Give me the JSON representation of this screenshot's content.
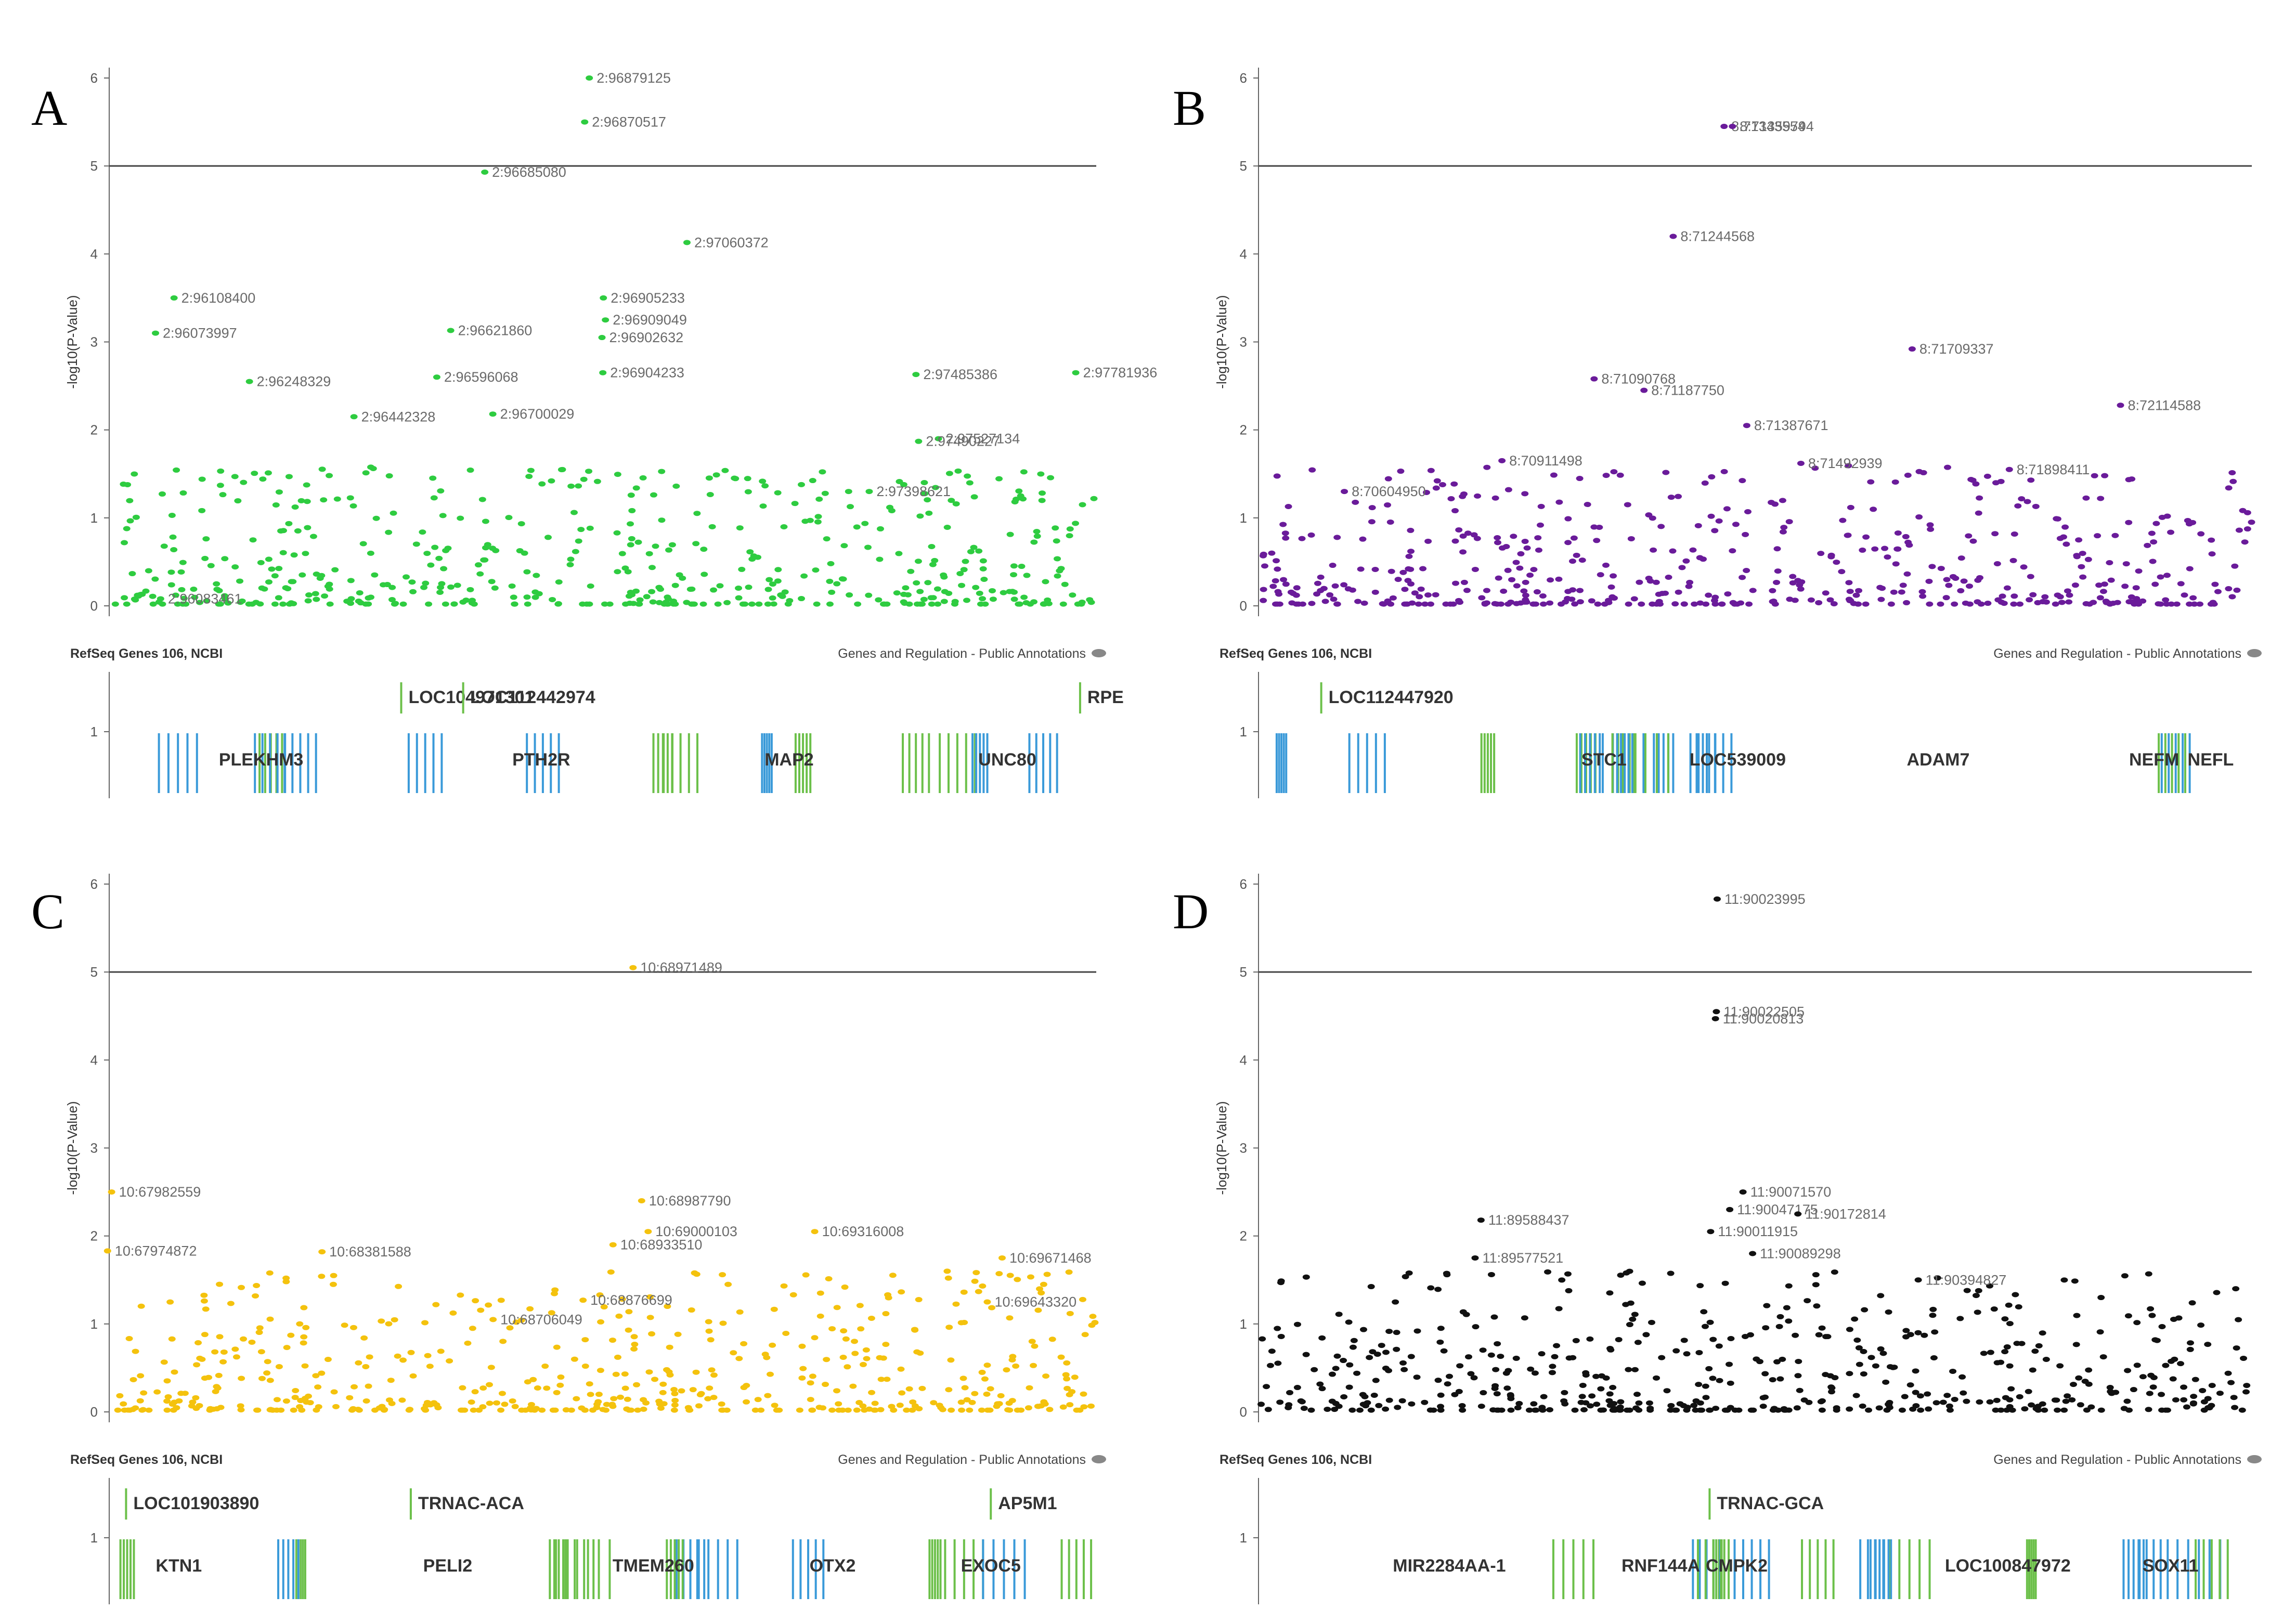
{
  "figure_title": "",
  "chart_data": [
    {
      "panel": "A",
      "type": "scatter",
      "color": "#2ecc40",
      "ylabel": "-log10(P-Value)",
      "ylim": [
        0,
        6
      ],
      "yticks": [
        0,
        1,
        2,
        3,
        4,
        5,
        6
      ],
      "xlim": [
        95990000,
        97820000
      ],
      "threshold": 5,
      "track_title": "RefSeq Genes 106, NCBI",
      "track_right": "Genes and Regulation - Public Annotations",
      "annotations": [
        {
          "label": "2:96879125",
          "x": 96879125,
          "y": 6.0
        },
        {
          "label": "2:96870517",
          "x": 96870517,
          "y": 5.5
        },
        {
          "label": "2:96685080",
          "x": 96685080,
          "y": 4.93
        },
        {
          "label": "2:97060372",
          "x": 97060372,
          "y": 4.13
        },
        {
          "label": "2:96905233",
          "x": 96905233,
          "y": 3.5
        },
        {
          "label": "2:96909049",
          "x": 96909049,
          "y": 3.25
        },
        {
          "label": "2:96902632",
          "x": 96902632,
          "y": 3.05
        },
        {
          "label": "2:96108400",
          "x": 96108400,
          "y": 3.5
        },
        {
          "label": "2:96073997",
          "x": 96073997,
          "y": 3.1
        },
        {
          "label": "2:96621860",
          "x": 96621860,
          "y": 3.13
        },
        {
          "label": "2:96248329",
          "x": 96248329,
          "y": 2.55
        },
        {
          "label": "2:96596068",
          "x": 96596068,
          "y": 2.6
        },
        {
          "label": "2:96904233",
          "x": 96904233,
          "y": 2.65
        },
        {
          "label": "2:96442328",
          "x": 96442328,
          "y": 2.15
        },
        {
          "label": "2:96700029",
          "x": 96700029,
          "y": 2.18
        },
        {
          "label": "2:97485386",
          "x": 97485386,
          "y": 2.63
        },
        {
          "label": "2:97781936",
          "x": 97781936,
          "y": 2.65
        },
        {
          "label": "2:97527134",
          "x": 97527134,
          "y": 1.9
        },
        {
          "label": "2:97490227",
          "x": 97490227,
          "y": 1.87
        },
        {
          "label": "2:97398621",
          "x": 97398621,
          "y": 1.3
        },
        {
          "label": "2:96083461",
          "x": 96083461,
          "y": 0.08
        }
      ],
      "genes_upper": [
        {
          "label": "LOC104971301",
          "x": 96530000
        },
        {
          "label": "LOC112442974",
          "x": 96645000
        },
        {
          "label": "RPE",
          "x": 97790000
        }
      ],
      "genes_lower": [
        {
          "label": "PLEKHM3",
          "x": 96270000
        },
        {
          "label": "PTH2R",
          "x": 96790000
        },
        {
          "label": "MAP2",
          "x": 97250000
        },
        {
          "label": "UNC80",
          "x": 97655000
        }
      ]
    },
    {
      "panel": "B",
      "type": "scatter",
      "color": "#6a1b9a",
      "ylabel": "-log10(P-Value)",
      "ylim": [
        0,
        6
      ],
      "yticks": [
        0,
        1,
        2,
        3,
        4,
        5,
        6
      ],
      "xlim": [
        70440000,
        72370000
      ],
      "threshold": 5,
      "track_title": "RefSeq Genes 106, NCBI",
      "track_right": "Genes and Regulation - Public Annotations",
      "annotations": [
        {
          "label": "8:71343554",
          "x": 71343554,
          "y": 5.45
        },
        {
          "label": "8:71359794",
          "x": 71359794,
          "y": 5.45
        },
        {
          "label": "8:71244568",
          "x": 71244568,
          "y": 4.2
        },
        {
          "label": "8:71709337",
          "x": 71709337,
          "y": 2.92
        },
        {
          "label": "8:71090768",
          "x": 71090768,
          "y": 2.58
        },
        {
          "label": "8:71187750",
          "x": 71187750,
          "y": 2.45
        },
        {
          "label": "8:71387671",
          "x": 71387671,
          "y": 2.05
        },
        {
          "label": "8:72114588",
          "x": 72114588,
          "y": 2.28
        },
        {
          "label": "8:70911498",
          "x": 70911498,
          "y": 1.65
        },
        {
          "label": "8:71492939",
          "x": 71492939,
          "y": 1.62
        },
        {
          "label": "8:71898411",
          "x": 71898411,
          "y": 1.55
        },
        {
          "label": "8:70604950",
          "x": 70604950,
          "y": 1.3
        }
      ],
      "genes_upper": [
        {
          "label": "LOC112447920",
          "x": 70560000
        }
      ],
      "genes_lower": [
        {
          "label": "STC1",
          "x": 71110000
        },
        {
          "label": "LOC539009",
          "x": 71370000
        },
        {
          "label": "ADAM7",
          "x": 71760000
        },
        {
          "label": "NEFM",
          "x": 72180000
        },
        {
          "label": "NEFL",
          "x": 72290000
        }
      ]
    },
    {
      "panel": "C",
      "type": "scatter",
      "color": "#f4c20d",
      "ylabel": "-log10(P-Value)",
      "ylim": [
        0,
        6
      ],
      "yticks": [
        0,
        1,
        2,
        3,
        4,
        5,
        6
      ],
      "xlim": [
        67980000,
        69850000
      ],
      "threshold": 5,
      "track_title": "RefSeq Genes 106, NCBI",
      "track_right": "Genes and Regulation - Public Annotations",
      "annotations": [
        {
          "label": "10:68971489",
          "x": 68971489,
          "y": 5.05
        },
        {
          "label": "10:67982559",
          "x": 67982559,
          "y": 2.5
        },
        {
          "label": "10:68987790",
          "x": 68987790,
          "y": 2.4
        },
        {
          "label": "10:69000103",
          "x": 69000103,
          "y": 2.05
        },
        {
          "label": "10:69316008",
          "x": 69316008,
          "y": 2.05
        },
        {
          "label": "10:68933510",
          "x": 68933510,
          "y": 1.9
        },
        {
          "label": "10:69671468",
          "x": 69671468,
          "y": 1.75
        },
        {
          "label": "10:67974872",
          "x": 67974872,
          "y": 1.83
        },
        {
          "label": "10:68381588",
          "x": 68381588,
          "y": 1.82
        },
        {
          "label": "10:68876699",
          "x": 68876699,
          "y": 1.27
        },
        {
          "label": "10:68706049",
          "x": 68706049,
          "y": 1.05
        },
        {
          "label": "10:69643320",
          "x": 69643320,
          "y": 1.25
        }
      ],
      "genes_upper": [
        {
          "label": "LOC101903890",
          "x": 68010000
        },
        {
          "label": "TRNAC-ACA",
          "x": 68550000
        },
        {
          "label": "AP5M1",
          "x": 69650000
        }
      ],
      "genes_lower": [
        {
          "label": "KTN1",
          "x": 68110000
        },
        {
          "label": "PELI2",
          "x": 68620000
        },
        {
          "label": "TMEM260",
          "x": 69010000
        },
        {
          "label": "OTX2",
          "x": 69350000
        },
        {
          "label": "EXOC5",
          "x": 69650000
        }
      ]
    },
    {
      "panel": "D",
      "type": "scatter",
      "color": "#111111",
      "ylabel": "-log10(P-Value)",
      "ylim": [
        0,
        6
      ],
      "yticks": [
        0,
        1,
        2,
        3,
        4,
        5,
        6
      ],
      "xlim": [
        89180000,
        91010000
      ],
      "threshold": 5,
      "track_title": "RefSeq Genes 106, NCBI",
      "track_right": "Genes and Regulation - Public Annotations",
      "annotations": [
        {
          "label": "11:90023995",
          "x": 90023995,
          "y": 5.83
        },
        {
          "label": "11:90022505",
          "x": 90022505,
          "y": 4.55
        },
        {
          "label": "11:90020813",
          "x": 90020813,
          "y": 4.47
        },
        {
          "label": "11:90071570",
          "x": 90071570,
          "y": 2.5
        },
        {
          "label": "11:90047175",
          "x": 90047175,
          "y": 2.3
        },
        {
          "label": "11:90172814",
          "x": 90172814,
          "y": 2.25
        },
        {
          "label": "11:89588437",
          "x": 89588437,
          "y": 2.18
        },
        {
          "label": "11:90011915",
          "x": 90011915,
          "y": 2.05
        },
        {
          "label": "11:90089298",
          "x": 90089298,
          "y": 1.8
        },
        {
          "label": "11:89577521",
          "x": 89577521,
          "y": 1.75
        },
        {
          "label": "11:90394827",
          "x": 90394827,
          "y": 1.5
        }
      ],
      "genes_upper": [
        {
          "label": "TRNAC-GCA",
          "x": 90010000
        }
      ],
      "genes_lower": [
        {
          "label": "MIR2284AA-1",
          "x": 89530000
        },
        {
          "label": "RNF144A",
          "x": 89920000
        },
        {
          "label": "CMPK2",
          "x": 90060000
        },
        {
          "label": "LOC100847972",
          "x": 90560000
        },
        {
          "label": "SOX11",
          "x": 90860000
        }
      ]
    }
  ]
}
